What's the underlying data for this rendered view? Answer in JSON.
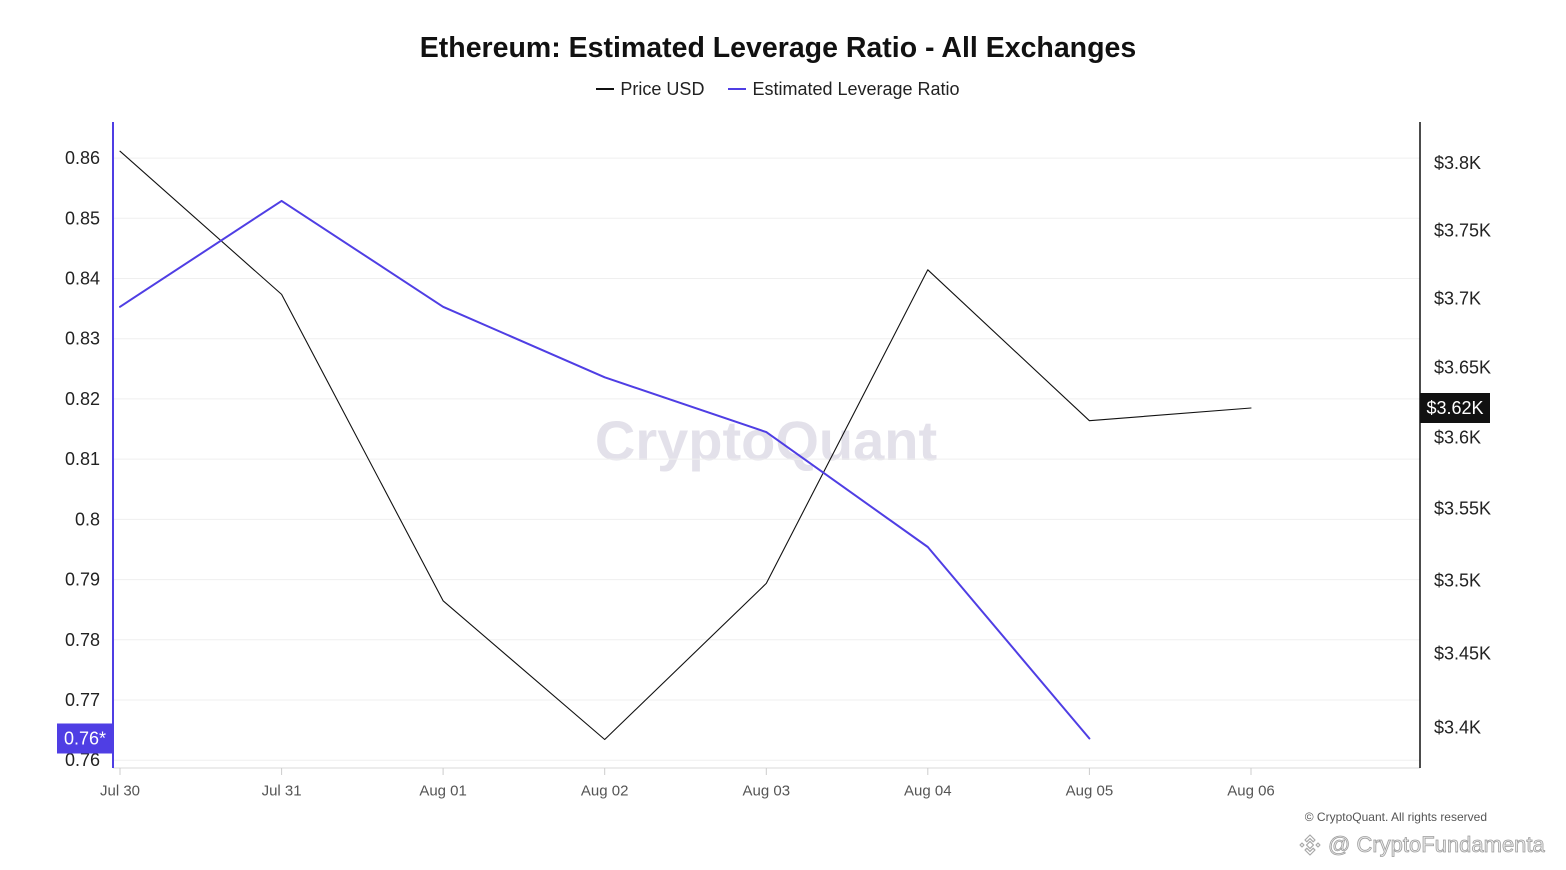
{
  "watermark": "CryptoQuant",
  "copyright": "© CryptoQuant. All rights reserved",
  "overlay_watermark": {
    "icon": "binance-logo-icon",
    "text": "@ CryptoFundamenta"
  },
  "chart_data": {
    "type": "line",
    "title": "Ethereum: Estimated Leverage Ratio - All Exchanges",
    "categories": [
      "Jul 30",
      "Jul 31",
      "Aug 01",
      "Aug 02",
      "Aug 03",
      "Aug 04",
      "Aug 05",
      "Aug 06"
    ],
    "series": [
      {
        "name": "Price USD",
        "axis": "right",
        "color": "#111111",
        "values": [
          3809,
          3703,
          3486,
          3392,
          3498,
          3721,
          3612,
          3621
        ]
      },
      {
        "name": "Estimated Leverage Ratio",
        "axis": "left",
        "color": "#4f3ee4",
        "values": [
          0.8353,
          0.8529,
          0.8353,
          0.8236,
          0.8145,
          0.7954,
          0.7636,
          null
        ]
      }
    ],
    "y_left": {
      "scale": "linear",
      "ylim": [
        0.7587,
        0.866
      ],
      "ticks": [
        0.86,
        0.85,
        0.84,
        0.83,
        0.82,
        0.81,
        0.8,
        0.79,
        0.78,
        0.77,
        0.76
      ],
      "tick_labels": [
        "0.86",
        "0.85",
        "0.84",
        "0.83",
        "0.82",
        "0.81",
        "0.8",
        "0.79",
        "0.78",
        "0.77",
        "0.76"
      ]
    },
    "y_right": {
      "scale": "log",
      "ylim": [
        3373,
        3831
      ],
      "ticks": [
        3800,
        3750,
        3700,
        3650,
        3600,
        3550,
        3500,
        3450,
        3400
      ],
      "tick_labels": [
        "$3.8K",
        "$3.75K",
        "$3.7K",
        "$3.65K",
        "$3.6K",
        "$3.55K",
        "$3.5K",
        "$3.45K",
        "$3.4K"
      ]
    },
    "last_value_labels": {
      "left": "0.76*",
      "right": "$3.62K"
    },
    "grid": "horizontal",
    "legend_position": "top-center"
  }
}
